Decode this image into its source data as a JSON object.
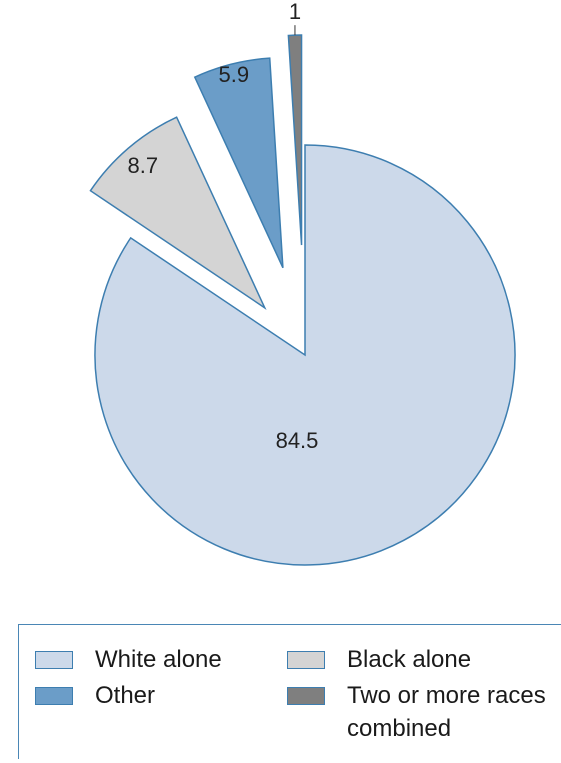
{
  "chart_data": {
    "type": "pie",
    "slices": [
      {
        "label": "White alone",
        "value": 84.5,
        "display": "84.5",
        "color": "#ccd9ea",
        "stroke": "#3d7eb0",
        "exploded": false
      },
      {
        "label": "Black alone",
        "value": 8.7,
        "display": "8.7",
        "color": "#d4d4d4",
        "stroke": "#3d7eb0",
        "exploded": true
      },
      {
        "label": "Other",
        "value": 5.9,
        "display": "5.9",
        "color": "#6b9dc8",
        "stroke": "#3d7eb0",
        "exploded": true
      },
      {
        "label": "Two or more races combined",
        "value": 1,
        "display": "1",
        "color": "#7f7f7f",
        "stroke": "#3d7eb0",
        "exploded": true
      }
    ],
    "legend": {
      "placement": "bottom",
      "items": [
        {
          "label": "White alone",
          "color": "#ccd9ea"
        },
        {
          "label": "Black alone",
          "color": "#d4d4d4"
        },
        {
          "label": "Other",
          "color": "#6b9dc8"
        },
        {
          "label": "Two or more races combined",
          "color": "#7f7f7f"
        }
      ]
    }
  }
}
